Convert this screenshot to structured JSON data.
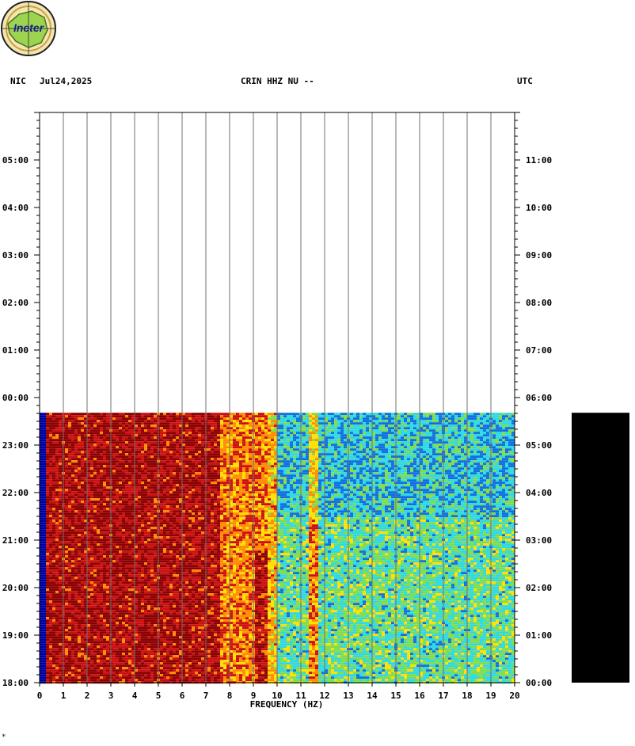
{
  "header": {
    "network": "NIC",
    "date": "Jul24,2025",
    "station": "CRIN HHZ NU --",
    "timezone": "UTC"
  },
  "logo": {
    "text": "Ineter"
  },
  "footnote": "*",
  "colors": {
    "dark_red": "#8b0000",
    "red": "#cc1010",
    "orange": "#ff8c00",
    "yellow": "#ffe000",
    "green": "#7fdc50",
    "cyan": "#30d8e0",
    "blue": "#1070e0",
    "navy": "#0000a0",
    "black_bar": "#000000"
  },
  "chart_data": {
    "type": "heatmap",
    "xlabel": "FREQUENCY (HZ)",
    "x_ticks": [
      "0",
      "1",
      "2",
      "3",
      "4",
      "5",
      "6",
      "7",
      "8",
      "9",
      "10",
      "11",
      "12",
      "13",
      "14",
      "15",
      "16",
      "17",
      "18",
      "19",
      "20"
    ],
    "xlim": [
      0,
      20
    ],
    "left_time_ticks": [
      "18:00",
      "19:00",
      "20:00",
      "21:00",
      "22:00",
      "23:00",
      "00:00",
      "01:00",
      "02:00",
      "03:00",
      "04:00",
      "05:00"
    ],
    "right_time_ticks": [
      "00:00",
      "01:00",
      "02:00",
      "03:00",
      "04:00",
      "05:00",
      "06:00",
      "07:00",
      "08:00",
      "09:00",
      "10:00",
      "11:00"
    ],
    "time_range_hours": [
      0,
      12
    ],
    "data_end_hours": 5.68,
    "colormap": [
      "#0000a0",
      "#1070e0",
      "#30d8e0",
      "#7fdc50",
      "#ffe000",
      "#ff8c00",
      "#cc1010",
      "#8b0000"
    ],
    "spectral_description_bands": [
      {
        "freq_range": [
          0,
          0.2
        ],
        "level": "blue"
      },
      {
        "freq_range": [
          0.2,
          7.5
        ],
        "level": "dark red"
      },
      {
        "freq_range": [
          7.5,
          10
        ],
        "level": "red/orange/yellow"
      },
      {
        "freq_range": [
          10,
          20
        ],
        "level": "cyan/blue/green"
      }
    ]
  }
}
